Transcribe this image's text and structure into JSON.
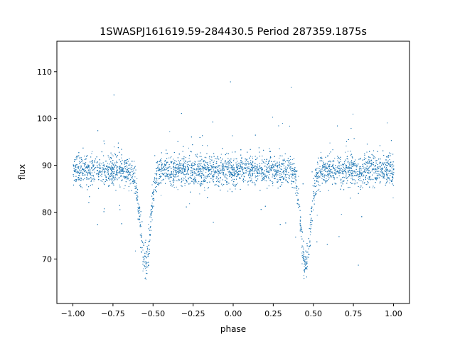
{
  "chart_data": {
    "type": "scatter",
    "title": "1SWASPJ161619.59-284430.5 Period 287359.1875s",
    "xlabel": "phase",
    "ylabel": "flux",
    "xlim": [
      -1.1,
      1.1
    ],
    "ylim": [
      60.5,
      116.5
    ],
    "x_ticks": [
      -1.0,
      -0.75,
      -0.5,
      -0.25,
      0.0,
      0.25,
      0.5,
      0.75,
      1.0
    ],
    "x_tick_labels": [
      "−1.00",
      "−0.75",
      "−0.50",
      "−0.25",
      "0.00",
      "0.25",
      "0.50",
      "0.75",
      "1.00"
    ],
    "y_ticks": [
      70,
      80,
      90,
      100,
      110
    ],
    "y_tick_labels": [
      "70",
      "80",
      "90",
      "100",
      "110"
    ],
    "grid": false,
    "legend": "none",
    "series_color": "#1f77b4",
    "light_curve": {
      "baseline_flux": 89,
      "scatter_sd": 1.6,
      "eclipses": [
        {
          "phase": -0.55,
          "min_flux": 69,
          "width": 0.03
        },
        {
          "phase": 0.45,
          "min_flux": 69,
          "width": 0.03
        }
      ],
      "points_sampled": 9000
    }
  }
}
